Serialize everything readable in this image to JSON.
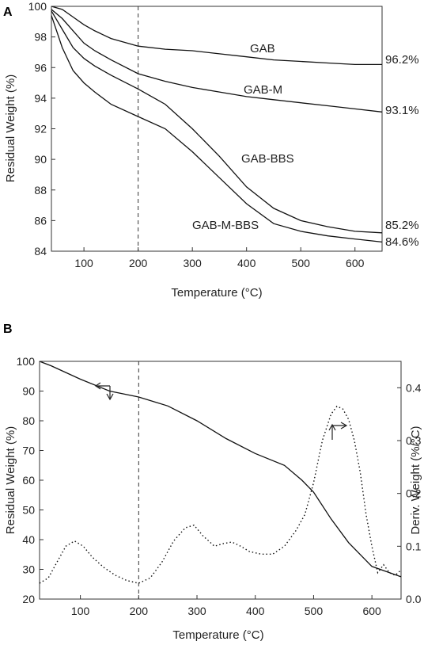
{
  "chart_data": [
    {
      "panel_label": "A",
      "type": "line",
      "xlabel": "Temperature (°C)",
      "ylabel": "Residual Weight (%)",
      "xlim": [
        40,
        650
      ],
      "ylim": [
        84,
        100
      ],
      "xticks": [
        100,
        200,
        300,
        400,
        500,
        600
      ],
      "yticks": [
        84,
        86,
        88,
        90,
        92,
        94,
        96,
        98,
        100
      ],
      "reference_line_x": 200,
      "series": [
        {
          "name": "GAB",
          "end_label": "96.2%",
          "x": [
            40,
            60,
            80,
            100,
            120,
            150,
            200,
            250,
            300,
            350,
            400,
            450,
            500,
            550,
            600,
            650
          ],
          "y": [
            100,
            99.8,
            99.3,
            98.8,
            98.4,
            97.9,
            97.4,
            97.2,
            97.1,
            96.9,
            96.7,
            96.5,
            96.4,
            96.3,
            96.2,
            96.2
          ]
        },
        {
          "name": "GAB-M",
          "end_label": "93.1%",
          "x": [
            40,
            60,
            80,
            100,
            120,
            150,
            200,
            250,
            300,
            350,
            400,
            450,
            500,
            550,
            600,
            650
          ],
          "y": [
            99.8,
            99.2,
            98.4,
            97.6,
            97.1,
            96.5,
            95.6,
            95.1,
            94.7,
            94.4,
            94.1,
            93.9,
            93.7,
            93.5,
            93.3,
            93.1
          ]
        },
        {
          "name": "GAB-BBS",
          "end_label": "85.2%",
          "x": [
            40,
            60,
            80,
            100,
            120,
            150,
            200,
            250,
            300,
            350,
            400,
            450,
            500,
            550,
            600,
            650
          ],
          "y": [
            99.7,
            98.5,
            97.3,
            96.6,
            96.1,
            95.5,
            94.6,
            93.6,
            92.0,
            90.2,
            88.2,
            86.8,
            86.0,
            85.6,
            85.3,
            85.2
          ]
        },
        {
          "name": "GAB-M-BBS",
          "end_label": "84.6%",
          "x": [
            40,
            60,
            80,
            100,
            120,
            150,
            200,
            250,
            300,
            350,
            400,
            450,
            500,
            550,
            600,
            650
          ],
          "y": [
            99.4,
            97.3,
            95.8,
            95.0,
            94.4,
            93.6,
            92.8,
            92.0,
            90.5,
            88.8,
            87.1,
            85.8,
            85.3,
            85.0,
            84.8,
            84.6
          ]
        }
      ]
    },
    {
      "panel_label": "B",
      "type": "line",
      "xlabel": "Temperature (°C)",
      "ylabel": "Residual Weight (%)",
      "y2label": "Deriv. Weight (%/°C)",
      "xlim": [
        30,
        650
      ],
      "ylim": [
        20,
        100
      ],
      "y2lim": [
        0.0,
        0.45
      ],
      "xticks": [
        100,
        200,
        300,
        400,
        500,
        600
      ],
      "yticks": [
        20,
        30,
        40,
        50,
        60,
        70,
        80,
        90,
        100
      ],
      "y2ticks": [
        0.0,
        0.1,
        0.2,
        0.3,
        0.4
      ],
      "reference_line_x": 200,
      "series": [
        {
          "axis": "left",
          "style": "solid",
          "x": [
            30,
            50,
            100,
            150,
            200,
            250,
            300,
            350,
            400,
            450,
            480,
            500,
            530,
            560,
            600,
            650
          ],
          "y": [
            100,
            98.5,
            94,
            90,
            88,
            85,
            80,
            74,
            69,
            65,
            60,
            56,
            47,
            39,
            31,
            27.5
          ]
        },
        {
          "axis": "right",
          "style": "dotted",
          "x": [
            30,
            45,
            60,
            75,
            90,
            105,
            120,
            140,
            160,
            180,
            200,
            220,
            240,
            260,
            280,
            295,
            310,
            330,
            345,
            360,
            375,
            390,
            410,
            430,
            450,
            470,
            485,
            500,
            515,
            530,
            540,
            550,
            560,
            570,
            580,
            590,
            600,
            610,
            620,
            630,
            640,
            650
          ],
          "y": [
            0.03,
            0.04,
            0.07,
            0.1,
            0.11,
            0.1,
            0.08,
            0.06,
            0.045,
            0.035,
            0.03,
            0.04,
            0.07,
            0.11,
            0.135,
            0.14,
            0.12,
            0.1,
            0.105,
            0.108,
            0.1,
            0.09,
            0.085,
            0.085,
            0.1,
            0.13,
            0.16,
            0.22,
            0.3,
            0.35,
            0.365,
            0.36,
            0.34,
            0.3,
            0.24,
            0.16,
            0.1,
            0.05,
            0.065,
            0.05,
            0.045,
            0.055
          ]
        }
      ]
    }
  ]
}
